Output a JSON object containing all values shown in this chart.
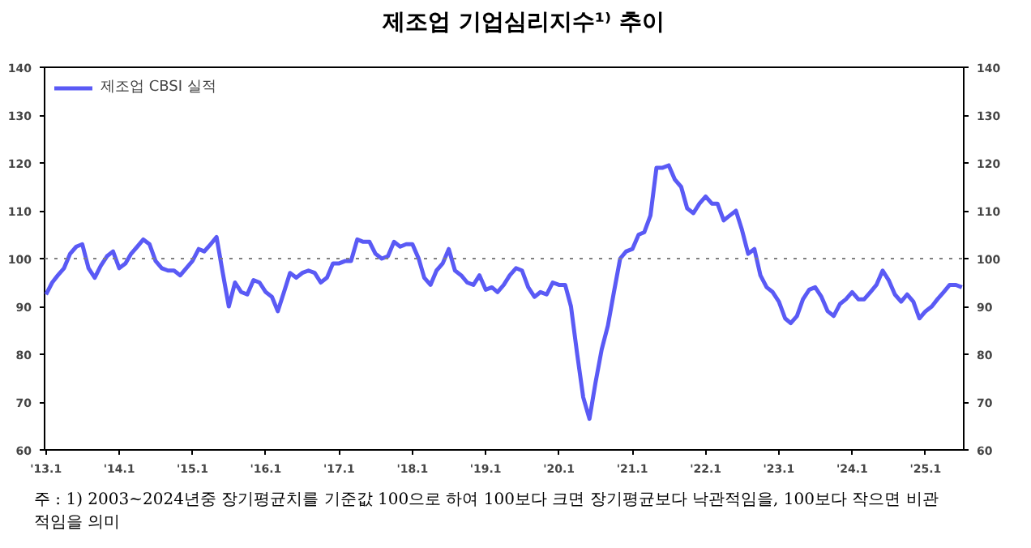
{
  "chart_data": {
    "type": "line",
    "title": "제조업 기업심리지수¹⁾ 추이",
    "x": [
      "2013-01",
      "2013-02",
      "2013-03",
      "2013-04",
      "2013-05",
      "2013-06",
      "2013-07",
      "2013-08",
      "2013-09",
      "2013-10",
      "2013-11",
      "2013-12",
      "2014-01",
      "2014-02",
      "2014-03",
      "2014-04",
      "2014-05",
      "2014-06",
      "2014-07",
      "2014-08",
      "2014-09",
      "2014-10",
      "2014-11",
      "2014-12",
      "2015-01",
      "2015-02",
      "2015-03",
      "2015-04",
      "2015-05",
      "2015-06",
      "2015-07",
      "2015-08",
      "2015-09",
      "2015-10",
      "2015-11",
      "2015-12",
      "2016-01",
      "2016-02",
      "2016-03",
      "2016-04",
      "2016-05",
      "2016-06",
      "2016-07",
      "2016-08",
      "2016-09",
      "2016-10",
      "2016-11",
      "2016-12",
      "2017-01",
      "2017-02",
      "2017-03",
      "2017-04",
      "2017-05",
      "2017-06",
      "2017-07",
      "2017-08",
      "2017-09",
      "2017-10",
      "2017-11",
      "2017-12",
      "2018-01",
      "2018-02",
      "2018-03",
      "2018-04",
      "2018-05",
      "2018-06",
      "2018-07",
      "2018-08",
      "2018-09",
      "2018-10",
      "2018-11",
      "2018-12",
      "2019-01",
      "2019-02",
      "2019-03",
      "2019-04",
      "2019-05",
      "2019-06",
      "2019-07",
      "2019-08",
      "2019-09",
      "2019-10",
      "2019-11",
      "2019-12",
      "2020-01",
      "2020-02",
      "2020-03",
      "2020-04",
      "2020-05",
      "2020-06",
      "2020-07",
      "2020-08",
      "2020-09",
      "2020-10",
      "2020-11",
      "2020-12",
      "2021-01",
      "2021-02",
      "2021-03",
      "2021-04",
      "2021-05",
      "2021-06",
      "2021-07",
      "2021-08",
      "2021-09",
      "2021-10",
      "2021-11",
      "2021-12",
      "2022-01",
      "2022-02",
      "2022-03",
      "2022-04",
      "2022-05",
      "2022-06",
      "2022-07",
      "2022-08",
      "2022-09",
      "2022-10",
      "2022-11",
      "2022-12",
      "2023-01",
      "2023-02",
      "2023-03",
      "2023-04",
      "2023-05",
      "2023-06",
      "2023-07",
      "2023-08",
      "2023-09",
      "2023-10",
      "2023-11",
      "2023-12",
      "2024-01",
      "2024-02",
      "2024-03",
      "2024-04",
      "2024-05",
      "2024-06",
      "2024-07",
      "2024-08",
      "2024-09",
      "2024-10",
      "2024-11",
      "2024-12",
      "2025-01",
      "2025-02",
      "2025-03",
      "2025-04",
      "2025-05",
      "2025-06",
      "2025-07"
    ],
    "series": [
      {
        "name": "제조업 CBSI 실적",
        "color": "#5a5af5",
        "values": [
          92.5,
          95,
          96.5,
          98,
          101,
          102.5,
          103,
          98,
          96,
          98.5,
          100.5,
          101.5,
          98,
          99,
          101,
          102.5,
          104,
          103,
          99.5,
          98,
          97.5,
          97.5,
          96.5,
          98,
          99.5,
          102,
          101.5,
          103,
          104.5,
          97,
          90,
          95,
          93,
          92.5,
          95.5,
          95,
          93,
          92,
          89,
          93,
          97,
          96,
          97,
          97.5,
          97,
          95,
          96,
          99,
          99,
          99.5,
          99.5,
          104,
          103.5,
          103.5,
          101,
          100,
          100.5,
          103.5,
          102.5,
          103,
          103,
          100,
          96,
          94.5,
          97.5,
          99,
          102,
          97.5,
          96.5,
          95,
          94.5,
          96.5,
          93.5,
          94,
          93,
          94.5,
          96.5,
          98,
          97.5,
          94,
          92,
          93,
          92.5,
          95,
          94.5,
          94.5,
          90,
          80,
          71,
          66.5,
          74,
          81,
          86,
          93,
          100,
          101.5,
          102,
          105,
          105.5,
          109,
          119,
          119,
          119.5,
          116.5,
          115,
          110.5,
          109.5,
          111.5,
          113,
          111.5,
          111.5,
          108,
          109,
          110,
          106,
          101,
          102,
          96.5,
          94,
          93,
          91,
          87.5,
          86.5,
          88,
          91.5,
          93.5,
          94,
          92,
          89,
          88,
          90.5,
          91.5,
          93,
          91.5,
          91.5,
          93,
          94.5,
          97.5,
          95.5,
          92.5,
          91,
          92.5,
          91,
          87.5,
          89,
          90,
          91.5,
          93,
          94.5,
          94.5,
          94
        ]
      }
    ],
    "xlim": [
      "2012-12-25",
      "2025-07-10"
    ],
    "xticks": [
      {
        "value": "2013-01",
        "label": "'13.1"
      },
      {
        "value": "2014-01",
        "label": "'14.1"
      },
      {
        "value": "2015-01",
        "label": "'15.1"
      },
      {
        "value": "2016-01",
        "label": "'16.1"
      },
      {
        "value": "2017-01",
        "label": "'17.1"
      },
      {
        "value": "2018-01",
        "label": "'18.1"
      },
      {
        "value": "2019-01",
        "label": "'19.1"
      },
      {
        "value": "2020-01",
        "label": "'20.1"
      },
      {
        "value": "2021-01",
        "label": "'21.1"
      },
      {
        "value": "2022-01",
        "label": "'22.1"
      },
      {
        "value": "2023-01",
        "label": "'23.1"
      },
      {
        "value": "2024-01",
        "label": "'24.1"
      },
      {
        "value": "2025-01",
        "label": "'25.1"
      }
    ],
    "ylim": [
      60,
      140
    ],
    "yticks": [
      60,
      70,
      80,
      90,
      100,
      110,
      120,
      130,
      140
    ],
    "y2lim": [
      60,
      140
    ],
    "y2ticks": [
      60,
      70,
      80,
      90,
      100,
      110,
      120,
      130,
      140
    ],
    "ref_lines": [
      {
        "axis": "y",
        "value": 100,
        "color": "#808080",
        "line_style": "dotted"
      }
    ],
    "grid": false,
    "legend": "top left",
    "marker": "none",
    "line_style": "solid",
    "annotations": [
      "주 : 1) 2003~2024년중 장기평균치를 기준값 100으로 하여 100보다 크면 장기평균보다 낙관적임을, 100보다 작으면 비관적임을 의미"
    ]
  }
}
